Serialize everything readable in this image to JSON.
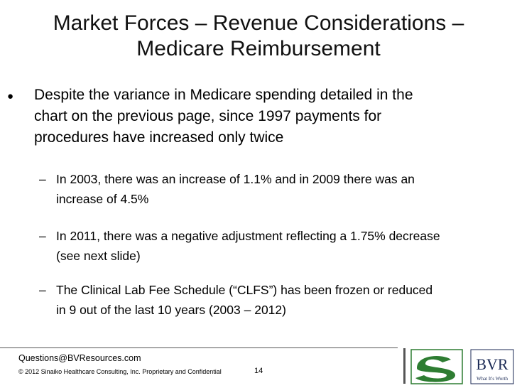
{
  "title": {
    "lines": [
      "Market Forces – Revenue Considerations –",
      "Medicare Reimbursement"
    ]
  },
  "bullet": {
    "lines": [
      "Despite the variance in Medicare spending detailed in the",
      "chart on the previous page, since 1997 payments for",
      "procedures have increased only twice"
    ]
  },
  "sub_bullets": [
    {
      "lines": [
        "In 2003, there was an increase of 1.1% and in 2009 there was an",
        "increase of 4.5%"
      ]
    },
    {
      "lines": [
        "In 2011, there was a negative adjustment reflecting a 1.75% decrease",
        "(see next slide)"
      ]
    },
    {
      "lines": [
        "The Clinical Lab Fee Schedule (“CLFS”) has been frozen or reduced",
        "in 9 out of the last 10 years (2003 – 2012)"
      ]
    }
  ],
  "footer": {
    "contact": "Questions@BVResources.com",
    "copyright": "© 2012 Sinaiko Healthcare Consulting, Inc. Proprietary and Confidential",
    "page": "14"
  },
  "logo": {
    "text": "BVR",
    "tagline": "What It's Worth"
  }
}
